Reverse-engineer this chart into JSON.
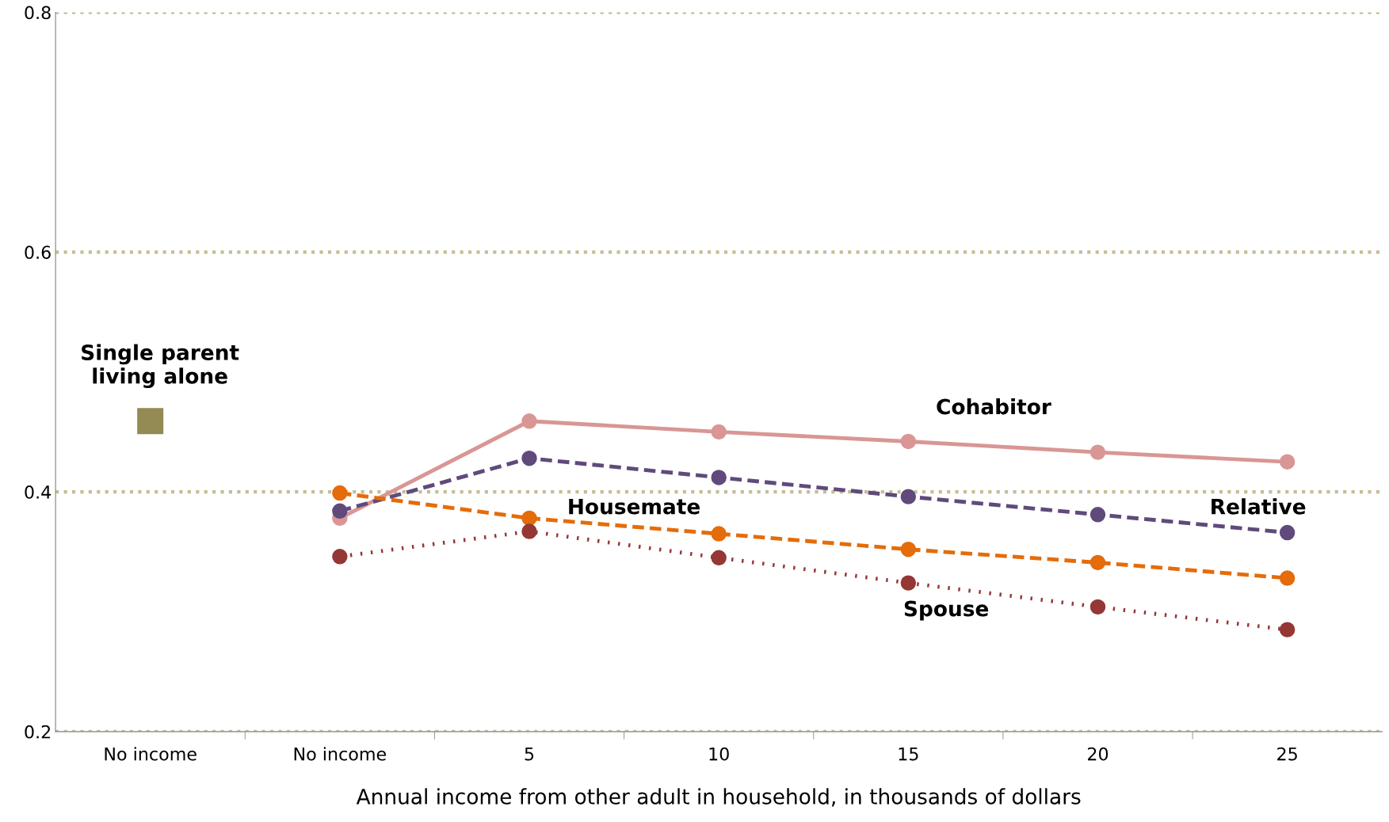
{
  "chart_data": {
    "type": "line",
    "xlabel": "Annual income from other adult in household, in thousands of dollars",
    "categories": [
      "No income",
      "No income",
      "5",
      "10",
      "15",
      "20",
      "25"
    ],
    "ylim": [
      0.2,
      0.8
    ],
    "yticks": [
      0.2,
      0.4,
      0.6,
      0.8
    ],
    "grid": "y",
    "legend": false,
    "marker": "circle",
    "series": [
      {
        "name": "Single parent\nliving alone",
        "type": "scatter",
        "marker": "square",
        "color": "#948a54",
        "values": [
          0.459,
          null,
          null,
          null,
          null,
          null,
          null
        ]
      },
      {
        "name": "Cohabitor",
        "color": "#d99694",
        "line_style": "solid",
        "values": [
          null,
          0.378,
          0.459,
          0.45,
          0.442,
          0.433,
          0.425
        ]
      },
      {
        "name": "Relative",
        "color": "#604a7b",
        "line_style": "dashed",
        "values": [
          null,
          0.384,
          0.428,
          0.412,
          0.396,
          0.381,
          0.366
        ]
      },
      {
        "name": "Housemate",
        "color": "#e46c0a",
        "line_style": "dashed",
        "values": [
          null,
          0.399,
          0.378,
          0.365,
          0.352,
          0.341,
          0.328
        ]
      },
      {
        "name": "Spouse",
        "color": "#953735",
        "line_style": "dotted",
        "values": [
          null,
          0.346,
          0.367,
          0.345,
          0.324,
          0.304,
          0.285
        ]
      }
    ]
  }
}
